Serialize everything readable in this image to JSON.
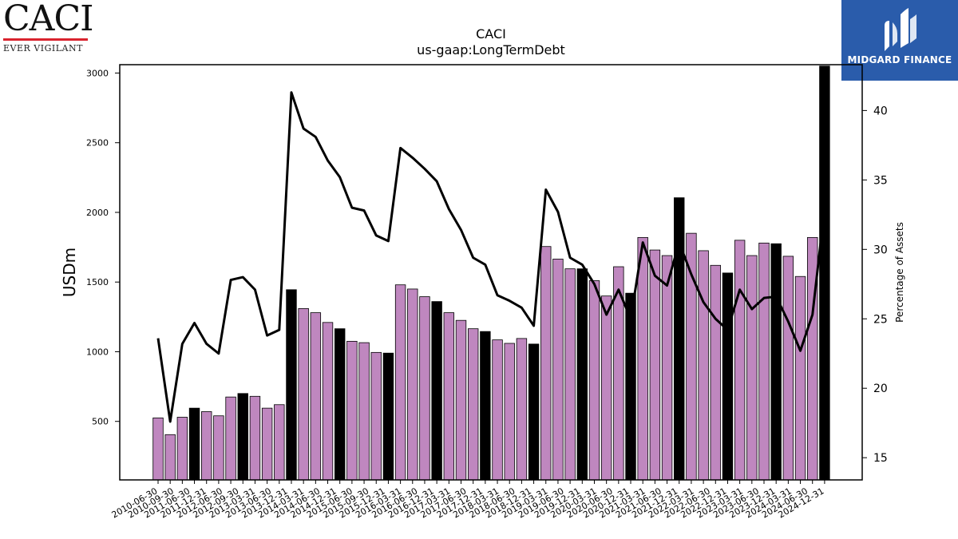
{
  "logos": {
    "caci": {
      "word": "CACI",
      "tagline": "EVER VIGILANT"
    },
    "midgard": {
      "word": "MIDGARD FINANCE"
    }
  },
  "colors": {
    "bar_default": "#bf87bf",
    "bar_highlight": "#000000",
    "line": "#000000"
  },
  "chart_data": {
    "type": "bar",
    "title": "CACI",
    "subtitle": "us-gaap:LongTermDebt",
    "ylabel": "USDm",
    "y2label": "Percentage of Assets",
    "ylim": [
      80,
      3060
    ],
    "y2lim": [
      13.4,
      43.3
    ],
    "yticks": [
      500,
      1000,
      1500,
      2000,
      2500,
      3000
    ],
    "y2ticks": [
      15,
      20,
      25,
      30,
      35,
      40
    ],
    "categories": [
      "2010-06-30",
      "2010-09-30",
      "2010-12-31",
      "2011-06-30",
      "2011-09-30",
      "2011-12-31",
      "2012-06-30",
      "2012-09-30",
      "2012-12-31",
      "2013-03-31",
      "2013-06-30",
      "2013-09-30",
      "2013-12-31",
      "2014-03-31",
      "2014-06-30",
      "2014-09-30",
      "2014-12-31",
      "2015-03-31",
      "2015-06-30",
      "2015-09-30",
      "2015-12-31",
      "2016-03-31",
      "2016-06-30",
      "2016-09-30",
      "2016-12-31",
      "2017-03-31",
      "2017-06-30",
      "2017-09-30",
      "2017-12-31",
      "2018-03-31",
      "2018-06-30",
      "2018-09-30",
      "2018-12-31",
      "2019-03-31",
      "2019-06-30",
      "2019-09-30",
      "2019-12-31",
      "2020-03-31",
      "2020-06-30",
      "2020-09-30",
      "2020-12-31",
      "2021-03-31",
      "2021-06-30",
      "2021-09-30",
      "2021-12-31",
      "2022-03-31",
      "2022-06-30",
      "2022-09-30",
      "2022-12-31",
      "2023-03-31",
      "2023-06-30",
      "2023-09-30",
      "2023-12-31",
      "2024-03-31",
      "2024-06-30",
      "2024-12-31"
    ],
    "tick_labels": [
      "2010-06-30",
      "2010-09-30",
      "2011-06-30",
      "2011-12-31",
      "2012-06-30",
      "2012-09-30",
      "2013-03-31",
      "2013-06-30",
      "2013-12-31",
      "2014-03-31",
      "2014-06-30",
      "2014-12-31",
      "2015-06-30",
      "2015-09-30",
      "2015-12-31",
      "2016-03-31",
      "2016-06-30",
      "2016-12-31",
      "2017-03-31",
      "2017-06-30",
      "2017-12-31",
      "2018-03-31",
      "2018-06-30",
      "2018-12-31",
      "2019-03-31",
      "2019-06-30",
      "2019-12-31",
      "2020-03-31",
      "2020-06-30",
      "2020-12-31",
      "2021-03-31",
      "2021-06-30",
      "2021-12-31",
      "2022-03-31",
      "2022-06-30",
      "2022-12-31",
      "2023-03-31",
      "2023-06-30",
      "2023-12-31",
      "2024-03-31",
      "2024-06-30",
      "2024-12-31"
    ],
    "series": [
      {
        "type": "bar",
        "axis": "left",
        "values": [
          525,
          405,
          530,
          595,
          570,
          540,
          675,
          700,
          680,
          595,
          620,
          1445,
          1310,
          1280,
          1210,
          1165,
          1075,
          1065,
          995,
          990,
          1480,
          1450,
          1395,
          1360,
          1280,
          1225,
          1165,
          1145,
          1085,
          1060,
          1095,
          1055,
          1755,
          1665,
          1595,
          1595,
          1510,
          1400,
          1610,
          1420,
          1820,
          1730,
          1690,
          2105,
          1850,
          1725,
          1620,
          1565,
          1800,
          1690,
          1780,
          1775,
          1685,
          1540,
          1820,
          3050
        ],
        "highlighted": [
          3,
          7,
          11,
          15,
          19,
          23,
          27,
          31,
          35,
          39,
          43,
          47,
          51,
          55
        ]
      },
      {
        "type": "line",
        "axis": "right",
        "values": [
          23.6,
          17.6,
          23.2,
          24.7,
          23.2,
          22.5,
          27.8,
          28.0,
          27.1,
          23.8,
          24.2,
          41.3,
          38.7,
          38.1,
          36.4,
          35.2,
          33.0,
          32.8,
          31.0,
          30.6,
          37.3,
          36.6,
          35.8,
          34.9,
          32.9,
          31.4,
          29.4,
          28.9,
          26.7,
          26.3,
          25.8,
          24.5,
          34.3,
          32.7,
          29.4,
          28.9,
          27.5,
          25.3,
          27.1,
          25.0,
          30.5,
          28.1,
          27.4,
          30.5,
          28.2,
          26.2,
          25.0,
          24.2,
          27.1,
          25.7,
          26.5,
          26.6,
          24.8,
          22.7,
          25.3,
          33.0
        ]
      }
    ]
  }
}
